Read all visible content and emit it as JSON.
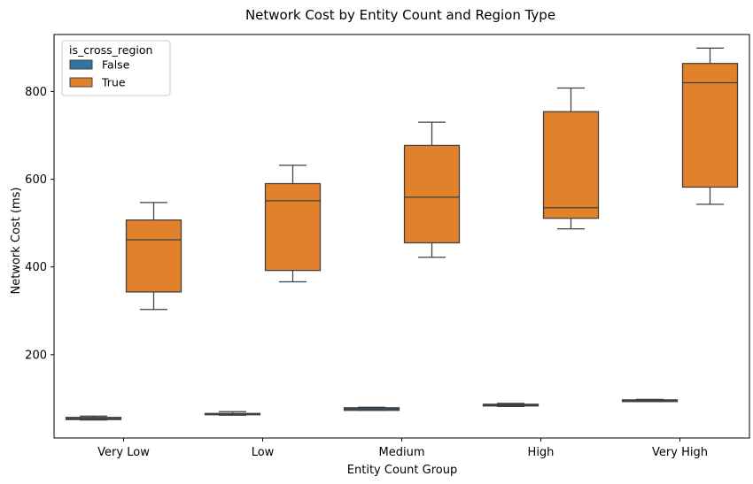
{
  "chart_data": {
    "type": "boxplot",
    "title": "Network Cost by Entity Count and Region Type",
    "xlabel": "Entity Count Group",
    "ylabel": "Network Cost (ms)",
    "categories": [
      "Very Low",
      "Low",
      "Medium",
      "High",
      "Very High"
    ],
    "yticks": [
      200,
      400,
      600,
      800
    ],
    "ylim": [
      10,
      930
    ],
    "grid": false,
    "legend": {
      "title": "is_cross_region",
      "placement": "top-left"
    },
    "series": [
      {
        "name": "False",
        "color": "#3274a1",
        "boxes": [
          {
            "whisker_low": 51,
            "q1": 52,
            "median": 54,
            "q3": 57,
            "whisker_high": 60
          },
          {
            "whisker_low": 62,
            "q1": 63,
            "median": 64,
            "q3": 66,
            "whisker_high": 70
          },
          {
            "whisker_low": 73,
            "q1": 73,
            "median": 76,
            "q3": 79,
            "whisker_high": 80
          },
          {
            "whisker_low": 82,
            "q1": 83,
            "median": 85,
            "q3": 87,
            "whisker_high": 89
          },
          {
            "whisker_low": 93,
            "q1": 93,
            "median": 95,
            "q3": 97,
            "whisker_high": 98
          }
        ]
      },
      {
        "name": "True",
        "color": "#e1812c",
        "boxes": [
          {
            "whisker_low": 303,
            "q1": 343,
            "median": 462,
            "q3": 507,
            "whisker_high": 547
          },
          {
            "whisker_low": 366,
            "q1": 392,
            "median": 551,
            "q3": 590,
            "whisker_high": 632
          },
          {
            "whisker_low": 422,
            "q1": 455,
            "median": 559,
            "q3": 677,
            "whisker_high": 730
          },
          {
            "whisker_low": 487,
            "q1": 511,
            "median": 535,
            "q3": 754,
            "whisker_high": 808
          },
          {
            "whisker_low": 543,
            "q1": 582,
            "median": 820,
            "q3": 864,
            "whisker_high": 899
          }
        ]
      }
    ]
  }
}
